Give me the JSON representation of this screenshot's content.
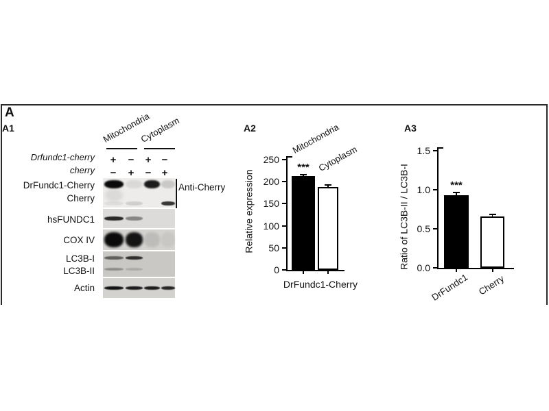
{
  "panel_label": "A",
  "a1": {
    "label": "A1",
    "col_headers": [
      "Mitochondria",
      "Cytoplasm"
    ],
    "conditions": [
      {
        "label": "Drfundc1-cherry",
        "signs": [
          "+",
          "−",
          "+",
          "−"
        ]
      },
      {
        "label": "cherry",
        "signs": [
          "−",
          "+",
          "−",
          "+"
        ]
      }
    ],
    "antibody_label": "Anti-Cherry",
    "rows": [
      {
        "label": "DrFundc1-Cherry",
        "bands": [
          1.0,
          0.08,
          0.92,
          0.15
        ]
      },
      {
        "label": "Cherry",
        "bands": [
          0.06,
          0.12,
          0.0,
          0.8
        ]
      },
      {
        "label": "hsFUNDC1",
        "bands": [
          0.85,
          0.4,
          0.0,
          0.0
        ]
      },
      {
        "label": "COX IV",
        "bands": [
          1.0,
          0.95,
          0.1,
          0.05
        ]
      },
      {
        "label": "LC3B-I",
        "bands": [
          0.55,
          0.8,
          0.0,
          0.0
        ]
      },
      {
        "label": "LC3B-II",
        "bands": [
          0.3,
          0.15,
          0.0,
          0.0
        ]
      },
      {
        "label": "Actin",
        "bands": [
          0.95,
          0.9,
          0.9,
          0.85
        ]
      }
    ]
  },
  "chart_data": [
    {
      "id": "A2",
      "label": "A2",
      "type": "bar",
      "categories": [
        "Mitochondria",
        "Cytoplasm"
      ],
      "values": [
        212,
        188
      ],
      "errors": [
        5,
        6
      ],
      "significance": [
        "***",
        ""
      ],
      "xlabel": "DrFundc1-Cherry",
      "ylabel": "Relative expression",
      "ylim": [
        0,
        250
      ],
      "yticks": [
        0,
        50,
        100,
        150,
        200,
        250
      ],
      "ytick_labels": [
        "0",
        "50",
        "100",
        "150",
        "200",
        "250"
      ],
      "bar_colors": [
        "#000000",
        "#ffffff"
      ],
      "legend": "none",
      "grid": false
    },
    {
      "id": "A3",
      "label": "A3",
      "type": "bar",
      "categories": [
        "DrFundc1",
        "Cherry"
      ],
      "values": [
        0.93,
        0.66
      ],
      "errors": [
        0.04,
        0.03
      ],
      "significance": [
        "***",
        ""
      ],
      "xlabel": "",
      "ylabel": "Ratio of LC3B-II / LC3B-I",
      "ylim": [
        0,
        1.5
      ],
      "yticks": [
        0,
        0.5,
        1.0,
        1.5
      ],
      "ytick_labels": [
        "0.0",
        "0.5",
        "1.0",
        "1.5"
      ],
      "bar_colors": [
        "#000000",
        "#ffffff"
      ],
      "legend": "none",
      "grid": false
    }
  ]
}
